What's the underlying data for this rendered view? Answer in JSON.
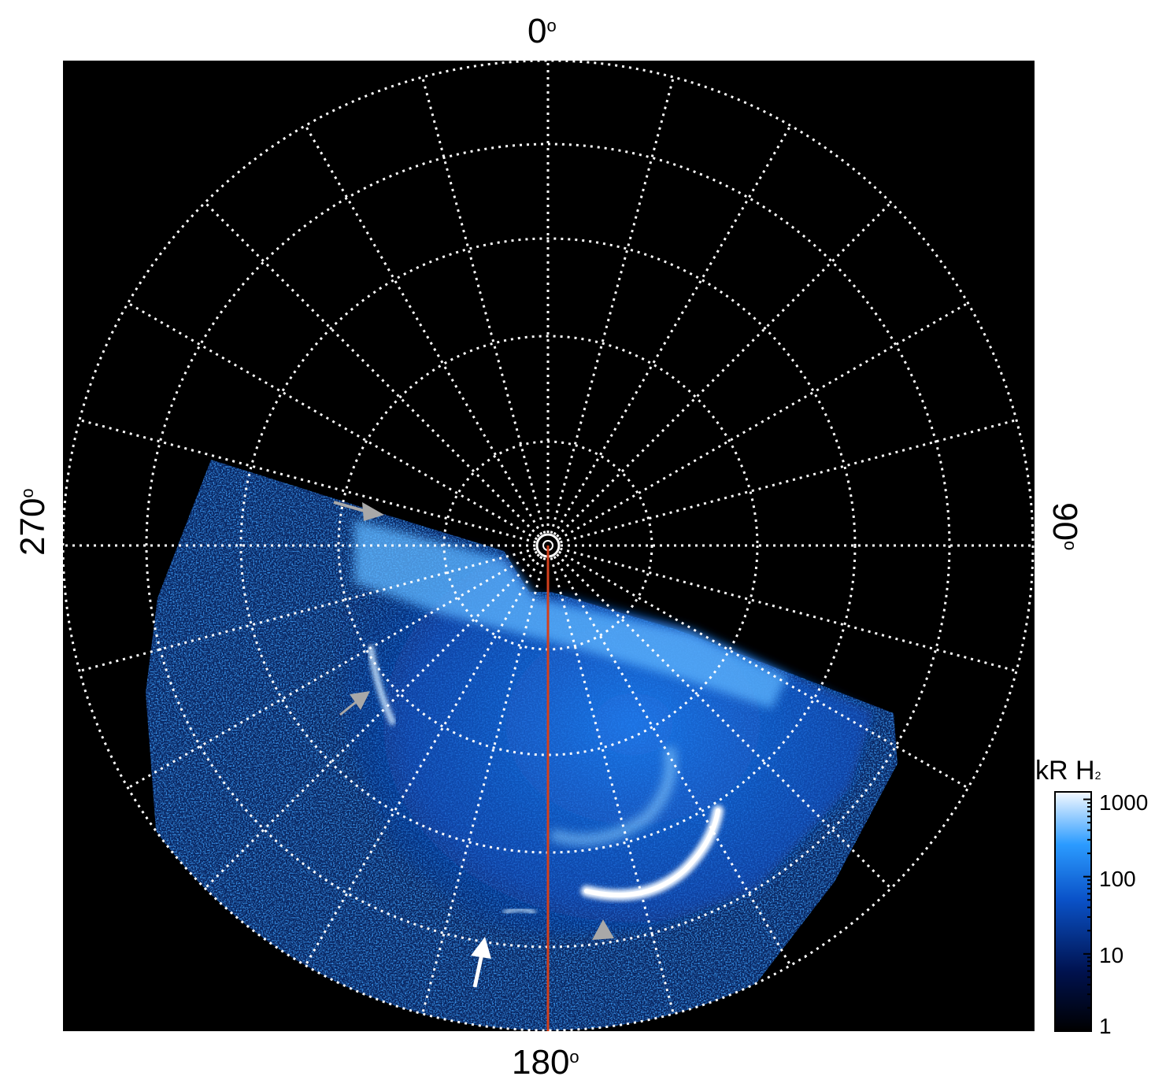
{
  "labels": {
    "top": "0",
    "bottom": "180",
    "left": "270",
    "right": "90",
    "degree": "o"
  },
  "colorbar": {
    "title_main": "kR H",
    "title_sub": "2",
    "ticks": [
      "1000",
      "100",
      "10",
      "1"
    ]
  },
  "colors": {
    "background": "#000000",
    "grid": "#ffffff",
    "meridian_line": "#d2401c",
    "aurora_bright": "#f2f8ff",
    "aurora_mid": "#4aa6ff",
    "aurora_dark": "#0a2b8a",
    "arrow_grey": "#a8a8a8",
    "arrow_white": "#ffffff"
  }
}
